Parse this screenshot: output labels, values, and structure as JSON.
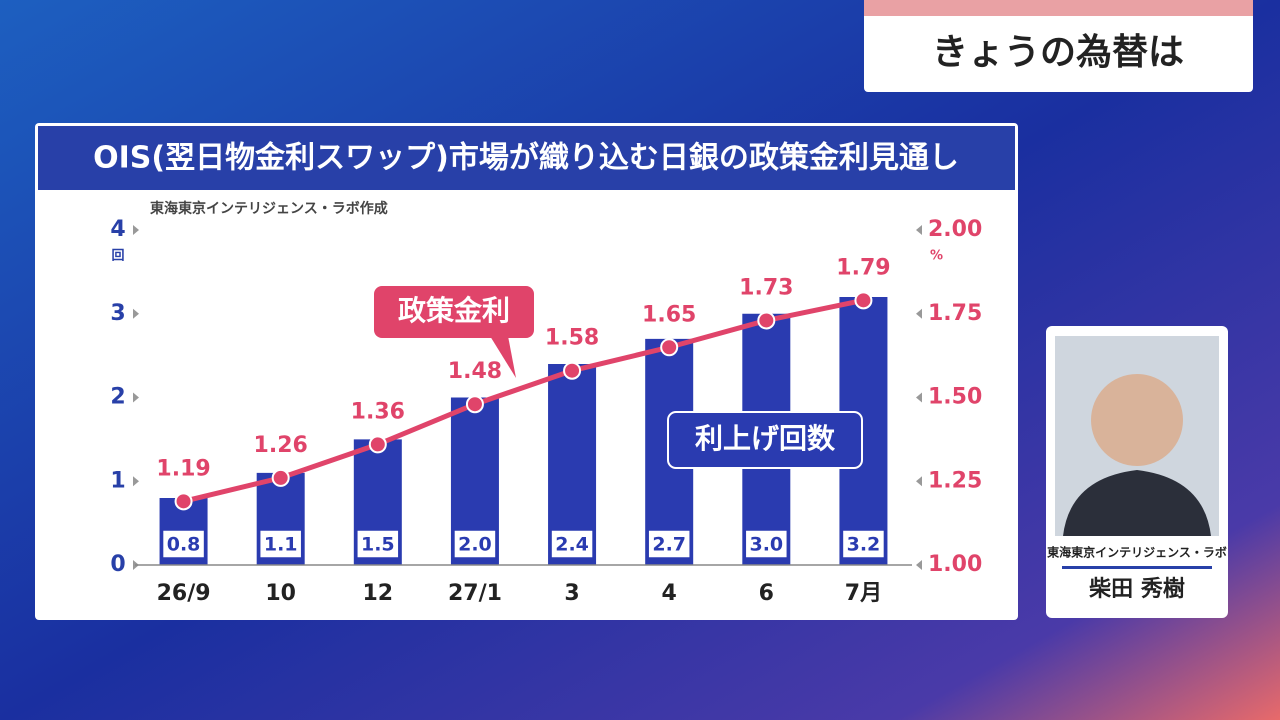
{
  "header": {
    "title": "きょうの為替は"
  },
  "chart_data": {
    "type": "bar_line",
    "title": "OIS(翌日物金利スワップ)市場が織り込む日銀の政策金利見通し",
    "source": "東海東京インテリジェンス・ラボ作成",
    "categories": [
      "26/9",
      "10",
      "12",
      "27/1",
      "3",
      "4",
      "6",
      "7月"
    ],
    "series": [
      {
        "name": "利上げ回数",
        "color": "#2a3bb0",
        "axis": "y",
        "values": [
          0.8,
          1.1,
          1.5,
          2.0,
          2.4,
          2.7,
          3.0,
          3.2
        ],
        "value_labels": [
          "0.8",
          "1.1",
          "1.5",
          "2.0",
          "2.4",
          "2.7",
          "3.0",
          "3.2"
        ]
      },
      {
        "name": "政策金利",
        "color": "#e0446a",
        "axis": "y2",
        "values": [
          1.19,
          1.26,
          1.36,
          1.48,
          1.58,
          1.65,
          1.73,
          1.79
        ]
      }
    ],
    "y_unit": "回",
    "y2_unit": "%",
    "ylim": [
      0,
      4
    ],
    "yticks": [
      0,
      1,
      2,
      3,
      4
    ],
    "y2lim": [
      1.0,
      2.0
    ],
    "y2ticks": [
      {
        "value": 1.0,
        "label": "1.00"
      },
      {
        "value": 1.25,
        "label": "1.25"
      },
      {
        "value": 1.5,
        "label": "1.50"
      },
      {
        "value": 1.75,
        "label": "1.75"
      },
      {
        "value": 2.0,
        "label": "2.00"
      }
    ],
    "grid": false
  },
  "guest": {
    "affiliation": "東海東京インテリジェンス・ラボ",
    "name": "柴田 秀樹"
  }
}
